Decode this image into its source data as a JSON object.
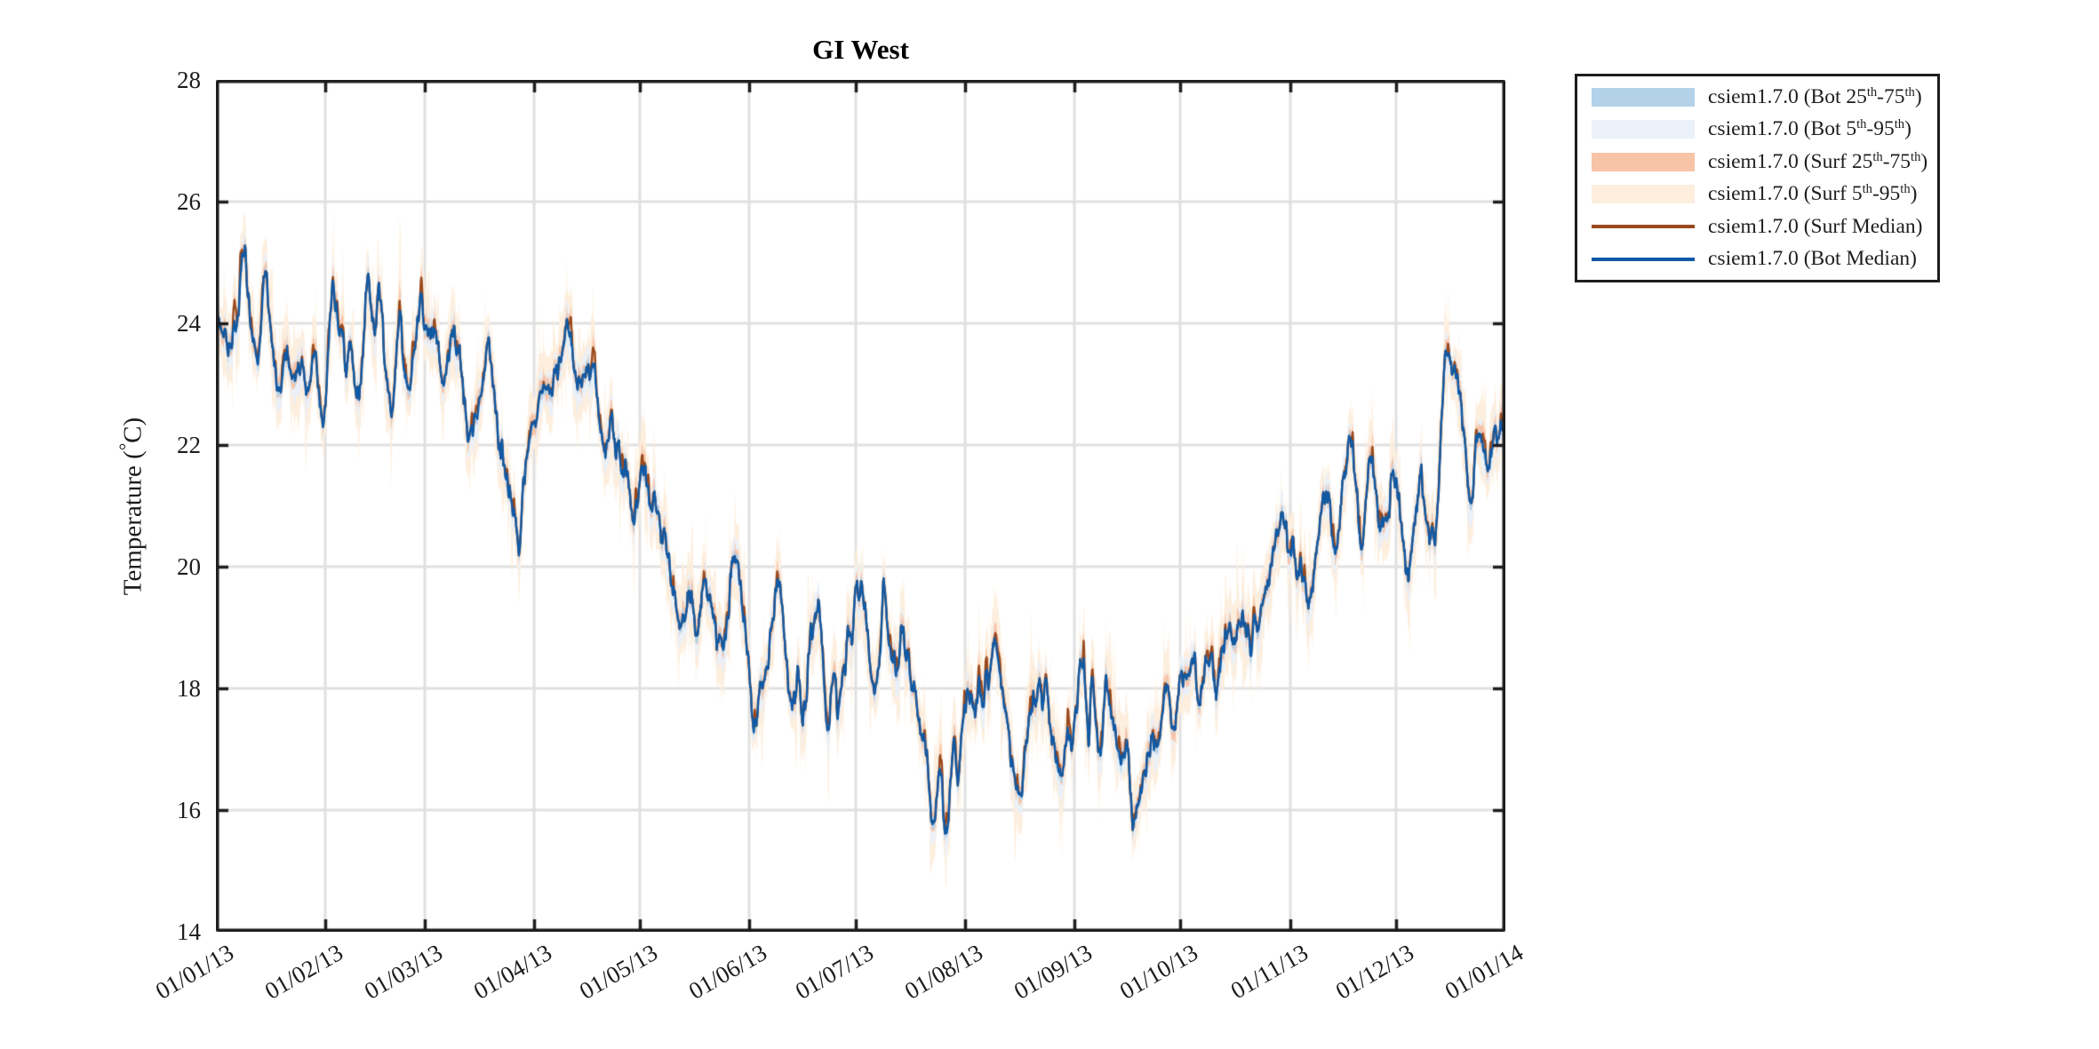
{
  "figure": {
    "background": "#ffffff"
  },
  "chart_data": {
    "type": "line",
    "title": "GI West",
    "ylabel": "Temperature (°C)",
    "ylabel_parts": {
      "pre": "Temperature (",
      "deg": "°",
      "post": "C)"
    },
    "xlabel": "",
    "ylim": [
      14,
      28
    ],
    "x_range_days": [
      0,
      365
    ],
    "grid": true,
    "legend_position": "outside-top-right",
    "axis_color": "#1d1d1d",
    "grid_color": "#e0e0e0",
    "y_ticks": [
      {
        "label": "28",
        "value": 28
      },
      {
        "label": "26",
        "value": 26
      },
      {
        "label": "24",
        "value": 24
      },
      {
        "label": "22",
        "value": 22
      },
      {
        "label": "20",
        "value": 20
      },
      {
        "label": "18",
        "value": 18
      },
      {
        "label": "16",
        "value": 16
      },
      {
        "label": "14",
        "value": 14
      }
    ],
    "x_ticks": [
      {
        "label": "01/01/13",
        "day": 0
      },
      {
        "label": "01/02/13",
        "day": 31
      },
      {
        "label": "01/03/13",
        "day": 59
      },
      {
        "label": "01/04/13",
        "day": 90
      },
      {
        "label": "01/05/13",
        "day": 120
      },
      {
        "label": "01/06/13",
        "day": 151
      },
      {
        "label": "01/07/13",
        "day": 181
      },
      {
        "label": "01/08/13",
        "day": 212
      },
      {
        "label": "01/09/13",
        "day": 243
      },
      {
        "label": "01/10/13",
        "day": 273
      },
      {
        "label": "01/11/13",
        "day": 304
      },
      {
        "label": "01/12/13",
        "day": 334
      },
      {
        "label": "01/01/14",
        "day": 365
      }
    ],
    "series": [
      {
        "name": "csiem1.7.0 (Bot 25th-75th)",
        "kind": "band",
        "color": "#b3d2e9",
        "label_parts": [
          [
            "csiem1.7.0 (Bot 25",
            0
          ],
          [
            "th",
            1
          ],
          [
            "-75",
            0
          ],
          [
            "th",
            1
          ],
          [
            ")",
            0
          ]
        ]
      },
      {
        "name": "csiem1.7.0 (Bot 5th-95th)",
        "kind": "band",
        "color": "#eaf1f9",
        "label_parts": [
          [
            "csiem1.7.0 (Bot 5",
            0
          ],
          [
            "th",
            1
          ],
          [
            "-95",
            0
          ],
          [
            "th",
            1
          ],
          [
            ")",
            0
          ]
        ]
      },
      {
        "name": "csiem1.7.0 (Surf 25th-75th)",
        "kind": "band",
        "color": "#f8c4a7",
        "label_parts": [
          [
            "csiem1.7.0 (Surf 25",
            0
          ],
          [
            "th",
            1
          ],
          [
            "-75",
            0
          ],
          [
            "th",
            1
          ],
          [
            ")",
            0
          ]
        ]
      },
      {
        "name": "csiem1.7.0 (Surf 5th-95th)",
        "kind": "band",
        "color": "#fdeedd",
        "label_parts": [
          [
            "csiem1.7.0 (Surf 5",
            0
          ],
          [
            "th",
            1
          ],
          [
            "-95",
            0
          ],
          [
            "th",
            1
          ],
          [
            ")",
            0
          ]
        ]
      },
      {
        "name": "csiem1.7.0 (Surf Median)",
        "kind": "line",
        "color": "#9a491c",
        "label_parts": [
          [
            "csiem1.7.0 (Surf Median)",
            0
          ]
        ]
      },
      {
        "name": "csiem1.7.0 (Bot Median)",
        "kind": "line",
        "color": "#1059a4",
        "label_parts": [
          [
            "csiem1.7.0 (Bot Median)",
            0
          ]
        ]
      }
    ],
    "bot_median_keypoints": [
      [
        0,
        24.3
      ],
      [
        1,
        24.0
      ],
      [
        2,
        23.8
      ],
      [
        3,
        23.6
      ],
      [
        4,
        23.5
      ],
      [
        6,
        24.2
      ],
      [
        8,
        25.15
      ],
      [
        9,
        24.6
      ],
      [
        10,
        23.85
      ],
      [
        12,
        23.3
      ],
      [
        14,
        24.85
      ],
      [
        15,
        24.3
      ],
      [
        16,
        23.7
      ],
      [
        18,
        22.95
      ],
      [
        20,
        23.55
      ],
      [
        22,
        23.2
      ],
      [
        24,
        23.3
      ],
      [
        26,
        22.7
      ],
      [
        28,
        23.5
      ],
      [
        30,
        22.5
      ],
      [
        32,
        23.6
      ],
      [
        33,
        24.35
      ],
      [
        34,
        24.3
      ],
      [
        36,
        23.6
      ],
      [
        37,
        23.3
      ],
      [
        38,
        23.6
      ],
      [
        40,
        22.7
      ],
      [
        42,
        23.8
      ],
      [
        43,
        24.65
      ],
      [
        45,
        24.1
      ],
      [
        46,
        24.75
      ],
      [
        48,
        23.25
      ],
      [
        50,
        22.75
      ],
      [
        52,
        24.05
      ],
      [
        54,
        23.0
      ],
      [
        56,
        23.6
      ],
      [
        58,
        24.1
      ],
      [
        60,
        23.8
      ],
      [
        62,
        24.0
      ],
      [
        64,
        23.0
      ],
      [
        66,
        23.5
      ],
      [
        67,
        23.9
      ],
      [
        69,
        23.4
      ],
      [
        71,
        22.6
      ],
      [
        72,
        22.1
      ],
      [
        74,
        22.7
      ],
      [
        76,
        23.2
      ],
      [
        77,
        23.45
      ],
      [
        79,
        22.6
      ],
      [
        81,
        21.7
      ],
      [
        82,
        21.4
      ],
      [
        84,
        21.1
      ],
      [
        86,
        20.6
      ],
      [
        88,
        21.8
      ],
      [
        90,
        22.5
      ],
      [
        91,
        22.7
      ],
      [
        93,
        22.9
      ],
      [
        94,
        23.0
      ],
      [
        96,
        23.1
      ],
      [
        98,
        23.4
      ],
      [
        100,
        23.8
      ],
      [
        102,
        23.1
      ],
      [
        104,
        23.2
      ],
      [
        106,
        23.1
      ],
      [
        107,
        23.0
      ],
      [
        109,
        22.4
      ],
      [
        111,
        21.9
      ],
      [
        112,
        22.3
      ],
      [
        114,
        21.8
      ],
      [
        116,
        21.5
      ],
      [
        118,
        21.0
      ],
      [
        120,
        21.3
      ],
      [
        121,
        21.6
      ],
      [
        123,
        21.1
      ],
      [
        125,
        20.9
      ],
      [
        127,
        20.5
      ],
      [
        129,
        19.9
      ],
      [
        131,
        18.85
      ],
      [
        133,
        19.4
      ],
      [
        134,
        19.6
      ],
      [
        136,
        18.8
      ],
      [
        138,
        19.6
      ],
      [
        139,
        19.8
      ],
      [
        141,
        19.2
      ],
      [
        143,
        18.7
      ],
      [
        145,
        19.4
      ],
      [
        147,
        20.1
      ],
      [
        149,
        19.2
      ],
      [
        151,
        18.0
      ],
      [
        152,
        17.55
      ],
      [
        154,
        18.0
      ],
      [
        156,
        18.3
      ],
      [
        158,
        19.5
      ],
      [
        159,
        19.9
      ],
      [
        161,
        18.9
      ],
      [
        163,
        17.7
      ],
      [
        165,
        18.3
      ],
      [
        166,
        17.5
      ],
      [
        169,
        19.0
      ],
      [
        171,
        19.35
      ],
      [
        173,
        17.35
      ],
      [
        175,
        18.2
      ],
      [
        176,
        17.8
      ],
      [
        178,
        18.55
      ],
      [
        180,
        19.0
      ],
      [
        182,
        19.75
      ],
      [
        184,
        19.0
      ],
      [
        185,
        18.5
      ],
      [
        186,
        17.9
      ],
      [
        188,
        18.8
      ],
      [
        189,
        19.6
      ],
      [
        191,
        18.8
      ],
      [
        193,
        18.5
      ],
      [
        194,
        18.8
      ],
      [
        196,
        18.3
      ],
      [
        199,
        17.4
      ],
      [
        201,
        16.9
      ],
      [
        203,
        15.95
      ],
      [
        205,
        16.7
      ],
      [
        207,
        15.75
      ],
      [
        209,
        16.9
      ],
      [
        210,
        16.4
      ],
      [
        212,
        17.85
      ],
      [
        214,
        17.75
      ],
      [
        216,
        17.8
      ],
      [
        218,
        17.95
      ],
      [
        220,
        18.5
      ],
      [
        222,
        18.2
      ],
      [
        225,
        17.1
      ],
      [
        228,
        16.4
      ],
      [
        230,
        17.3
      ],
      [
        232,
        17.95
      ],
      [
        234,
        17.8
      ],
      [
        235,
        17.9
      ],
      [
        237,
        17.3
      ],
      [
        239,
        16.7
      ],
      [
        241,
        17.35
      ],
      [
        243,
        17.2
      ],
      [
        245,
        18.5
      ],
      [
        247,
        17.2
      ],
      [
        248,
        18.1
      ],
      [
        250,
        17.0
      ],
      [
        252,
        17.85
      ],
      [
        254,
        17.4
      ],
      [
        256,
        16.95
      ],
      [
        257,
        17.15
      ],
      [
        258,
        17.0
      ],
      [
        260,
        15.9
      ],
      [
        262,
        16.4
      ],
      [
        263,
        16.8
      ],
      [
        265,
        17.0
      ],
      [
        267,
        17.0
      ],
      [
        269,
        18.0
      ],
      [
        271,
        17.2
      ],
      [
        273,
        18.2
      ],
      [
        275,
        18.35
      ],
      [
        277,
        18.4
      ],
      [
        279,
        17.8
      ],
      [
        281,
        18.55
      ],
      [
        283,
        17.95
      ],
      [
        285,
        18.6
      ],
      [
        287,
        18.75
      ],
      [
        288,
        18.85
      ],
      [
        290,
        19.2
      ],
      [
        292,
        18.8
      ],
      [
        295,
        19.2
      ],
      [
        298,
        19.7
      ],
      [
        300,
        20.3
      ],
      [
        302,
        21.0
      ],
      [
        304,
        20.4
      ],
      [
        306,
        20.05
      ],
      [
        308,
        19.8
      ],
      [
        310,
        19.4
      ],
      [
        312,
        20.3
      ],
      [
        314,
        21.15
      ],
      [
        316,
        20.6
      ],
      [
        317,
        20.3
      ],
      [
        319,
        21.3
      ],
      [
        321,
        22.15
      ],
      [
        323,
        21.2
      ],
      [
        324,
        20.4
      ],
      [
        326,
        21.4
      ],
      [
        327,
        21.95
      ],
      [
        329,
        21.0
      ],
      [
        330,
        20.6
      ],
      [
        332,
        21.1
      ],
      [
        333,
        21.5
      ],
      [
        335,
        21.2
      ],
      [
        336,
        20.6
      ],
      [
        338,
        20.0
      ],
      [
        340,
        20.9
      ],
      [
        341,
        21.4
      ],
      [
        343,
        20.8
      ],
      [
        344,
        20.5
      ],
      [
        346,
        21.3
      ],
      [
        348,
        23.3
      ],
      [
        350,
        23.2
      ],
      [
        351,
        23.0
      ],
      [
        353,
        22.5
      ],
      [
        355,
        21.3
      ],
      [
        357,
        22.0
      ],
      [
        358,
        22.3
      ],
      [
        360,
        21.9
      ],
      [
        361,
        21.7
      ],
      [
        363,
        22.35
      ],
      [
        365,
        22.3
      ]
    ]
  }
}
